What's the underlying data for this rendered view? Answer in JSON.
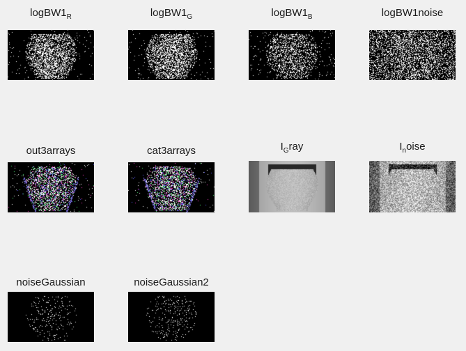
{
  "panels": [
    {
      "base": "logBW1",
      "sub": "R",
      "suffix": "",
      "mode": "bw-tongue"
    },
    {
      "base": "logBW1",
      "sub": "G",
      "suffix": "",
      "mode": "bw-tongue"
    },
    {
      "base": "logBW1",
      "sub": "B",
      "suffix": "",
      "mode": "bw-tongue-sparse"
    },
    {
      "base": "logBW1noise",
      "sub": "",
      "suffix": "",
      "mode": "bw-noise"
    },
    {
      "base": "out3arrays",
      "sub": "",
      "suffix": "",
      "mode": "color-tongue"
    },
    {
      "base": "cat3arrays",
      "sub": "",
      "suffix": "",
      "mode": "color-tongue"
    },
    {
      "base": "I",
      "sub": "G",
      "suffix": "ray",
      "mode": "gray-tongue"
    },
    {
      "base": "I",
      "sub": "n",
      "suffix": "oise",
      "mode": "gray-noise"
    },
    {
      "base": "noiseGaussian",
      "sub": "",
      "suffix": "",
      "mode": "sparse"
    },
    {
      "base": "noiseGaussian2",
      "sub": "",
      "suffix": "",
      "mode": "sparse"
    }
  ],
  "colors": {
    "background": "#f0f0f0",
    "title_text": "#1a1a1a",
    "image_background": "#000000"
  }
}
